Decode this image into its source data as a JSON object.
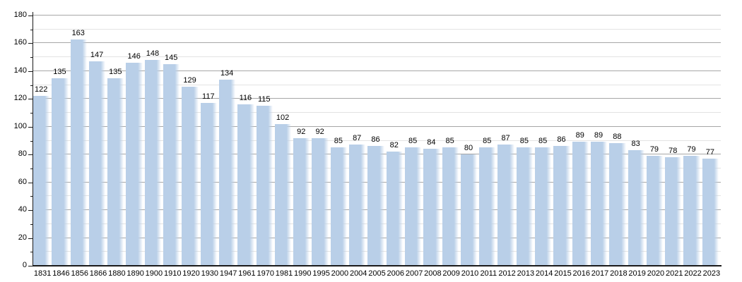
{
  "chart_data": {
    "type": "bar",
    "categories": [
      "1831",
      "1846",
      "1856",
      "1866",
      "1880",
      "1890",
      "1900",
      "1910",
      "1920",
      "1930",
      "1947",
      "1961",
      "1970",
      "1981",
      "1990",
      "1995",
      "2000",
      "2004",
      "2005",
      "2006",
      "2007",
      "2008",
      "2009",
      "2010",
      "2011",
      "2012",
      "2013",
      "2014",
      "2015",
      "2016",
      "2017",
      "2018",
      "2019",
      "2020",
      "2021",
      "2022",
      "2023"
    ],
    "values": [
      122,
      135,
      163,
      147,
      135,
      146,
      148,
      145,
      129,
      117,
      134,
      116,
      115,
      102,
      92,
      92,
      85,
      87,
      86,
      82,
      85,
      84,
      85,
      80,
      85,
      87,
      85,
      85,
      86,
      89,
      89,
      88,
      83,
      79,
      78,
      79,
      77
    ],
    "title": "",
    "xlabel": "",
    "ylabel": "",
    "ylim": [
      0,
      180
    ],
    "ytick_major": 20,
    "ytick_minor": 10,
    "grid": "horizontal-major-and-minor",
    "legend": "none",
    "value_labels_shown": true,
    "colors": {
      "bar": "#b9cfe8",
      "bar_fade_edge": "rgba(255,255,255,0)",
      "grid_major": "#a7a7a7",
      "grid_minor": "#e3e3e3",
      "axis": "#1a1a1a",
      "text": "#000000",
      "background": "#ffffff"
    }
  }
}
